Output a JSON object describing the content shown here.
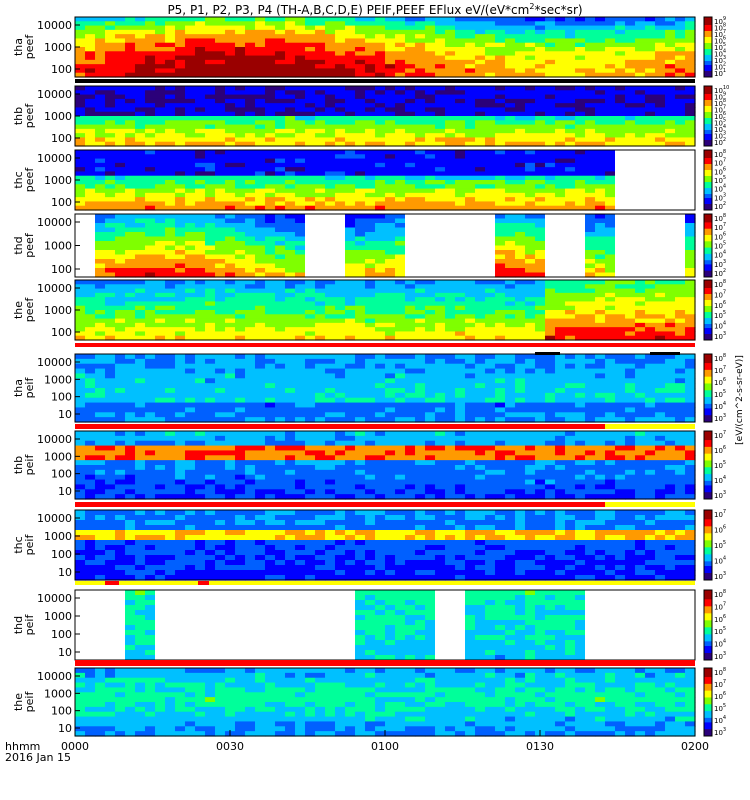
{
  "title_parts": {
    "main": "P5, P1, P2, P3, P4 (TH-A,B,C,D,E) PEIF,PEEF EFlux eV/(eV*cm",
    "sup": "2",
    "tail": "*sec*sr)"
  },
  "x_axis": {
    "label_line1": "hhmm",
    "label_line2": "2016 Jan 15",
    "ticks": [
      "0000",
      "0030",
      "0100",
      "0130",
      "0200"
    ]
  },
  "colorbar_label": "[eV/(cm^2-s-sr-eV)]",
  "colors": {
    "spectrogram_scale": [
      "#2b007a",
      "#0000ff",
      "#0060ff",
      "#00c0ff",
      "#00ff9a",
      "#7fff00",
      "#ffff00",
      "#ff9a00",
      "#ff0000",
      "#9a0000"
    ],
    "red_bar": "#ff0000",
    "yellow_bar": "#ffff00",
    "black_bar": "#000000"
  },
  "chart_data": [
    {
      "type": "heatmap",
      "panel_label": [
        "tha",
        "peef"
      ],
      "y_ticks": [
        "10000",
        "1000",
        "100"
      ],
      "colorbar_ticks": [
        "10^9",
        "10^8",
        "10^7",
        "10^6",
        "10^5",
        "10^4",
        "10^3",
        "10^2",
        "10^1"
      ]
    },
    {
      "type": "heatmap",
      "panel_label": [
        "thb",
        "peef"
      ],
      "y_ticks": [
        "10000",
        "1000",
        "100"
      ],
      "colorbar_ticks": [
        "10^10",
        "10^9",
        "10^8",
        "10^7",
        "10^6",
        "10^5",
        "10^4",
        "10^3",
        "10^2"
      ]
    },
    {
      "type": "heatmap",
      "panel_label": [
        "thc",
        "peef"
      ],
      "y_ticks": [
        "10000",
        "1000",
        "100"
      ],
      "colorbar_ticks": [
        "10^8",
        "10^7",
        "10^6",
        "10^5",
        "10^4",
        "10^3",
        "10^2"
      ]
    },
    {
      "type": "heatmap",
      "panel_label": [
        "thd",
        "peef"
      ],
      "y_ticks": [
        "10000",
        "1000",
        "100"
      ],
      "colorbar_ticks": [
        "10^8",
        "10^7",
        "10^6",
        "10^5",
        "10^4",
        "10^3",
        "10^2"
      ]
    },
    {
      "type": "heatmap",
      "panel_label": [
        "the",
        "peef"
      ],
      "y_ticks": [
        "10000",
        "1000",
        "100"
      ],
      "colorbar_ticks": [
        "10^8",
        "10^7",
        "10^6",
        "10^5",
        "10^4",
        "10^3"
      ]
    },
    {
      "type": "heatmap",
      "panel_label": [
        "tha",
        "peif"
      ],
      "y_ticks": [
        "10000",
        "1000",
        "100",
        "10"
      ],
      "colorbar_ticks": [
        "10^8",
        "10^7",
        "10^6",
        "10^5",
        "10^4",
        "10^3"
      ]
    },
    {
      "type": "heatmap",
      "panel_label": [
        "thb",
        "peif"
      ],
      "y_ticks": [
        "10000",
        "1000",
        "100",
        "10"
      ],
      "colorbar_ticks": [
        "10^7",
        "10^6",
        "10^5",
        "10^4",
        "10^3"
      ]
    },
    {
      "type": "heatmap",
      "panel_label": [
        "thc",
        "peif"
      ],
      "y_ticks": [
        "10000",
        "1000",
        "100",
        "10"
      ],
      "colorbar_ticks": [
        "10^7",
        "10^6",
        "10^5",
        "10^4",
        "10^3"
      ]
    },
    {
      "type": "heatmap",
      "panel_label": [
        "thd",
        "peif"
      ],
      "y_ticks": [
        "10000",
        "1000",
        "100",
        "10"
      ],
      "colorbar_ticks": [
        "10^8",
        "10^7",
        "10^6",
        "10^5",
        "10^4",
        "10^3"
      ]
    },
    {
      "type": "heatmap",
      "panel_label": [
        "the",
        "peif"
      ],
      "y_ticks": [
        "10000",
        "1000",
        "100",
        "10"
      ],
      "colorbar_ticks": [
        "10^8",
        "10^7",
        "10^6",
        "10^5",
        "10^4",
        "10^3"
      ]
    }
  ]
}
